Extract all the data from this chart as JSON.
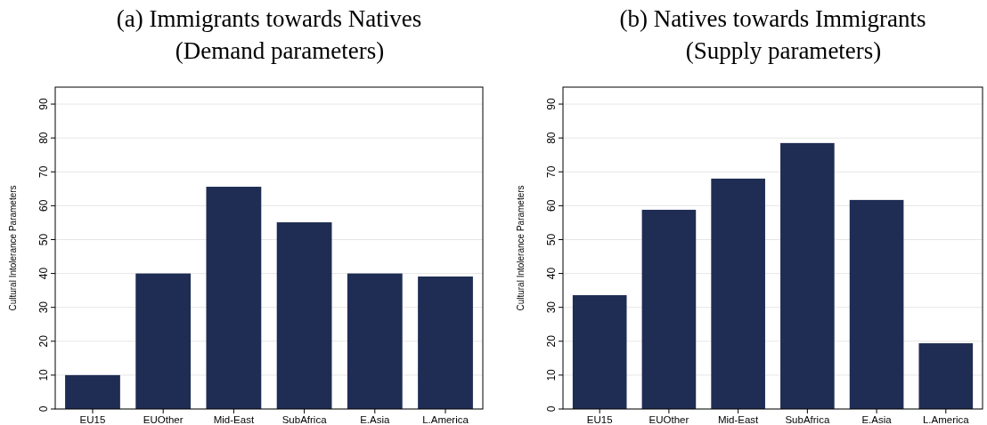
{
  "chart_data": [
    {
      "type": "bar",
      "title": "(a) Immigrants towards Natives",
      "subtitle": "(Demand parameters)",
      "ylabel": "Cultural Intolerance Parameters",
      "categories": [
        "EU15",
        "EUOther",
        "Mid-East",
        "SubAfrica",
        "E.Asia",
        "L.America"
      ],
      "values": [
        10,
        40,
        65.6,
        55.1,
        40,
        39.1
      ],
      "color": "#1f2d54",
      "ylim": [
        0,
        95
      ],
      "yticks": [
        0,
        10,
        20,
        30,
        40,
        50,
        60,
        70,
        80,
        90
      ],
      "grid": "y"
    },
    {
      "type": "bar",
      "title": "(b) Natives towards Immigrants",
      "subtitle": "(Supply parameters)",
      "ylabel": "Cultural Intolerance Parameters",
      "categories": [
        "EU15",
        "EUOther",
        "Mid-East",
        "SubAfrica",
        "E.Asia",
        "L.America"
      ],
      "values": [
        33.6,
        58.8,
        68,
        78.5,
        61.7,
        19.4
      ],
      "color": "#1f2d54",
      "ylim": [
        0,
        95
      ],
      "yticks": [
        0,
        10,
        20,
        30,
        40,
        50,
        60,
        70,
        80,
        90
      ],
      "grid": "y"
    }
  ]
}
